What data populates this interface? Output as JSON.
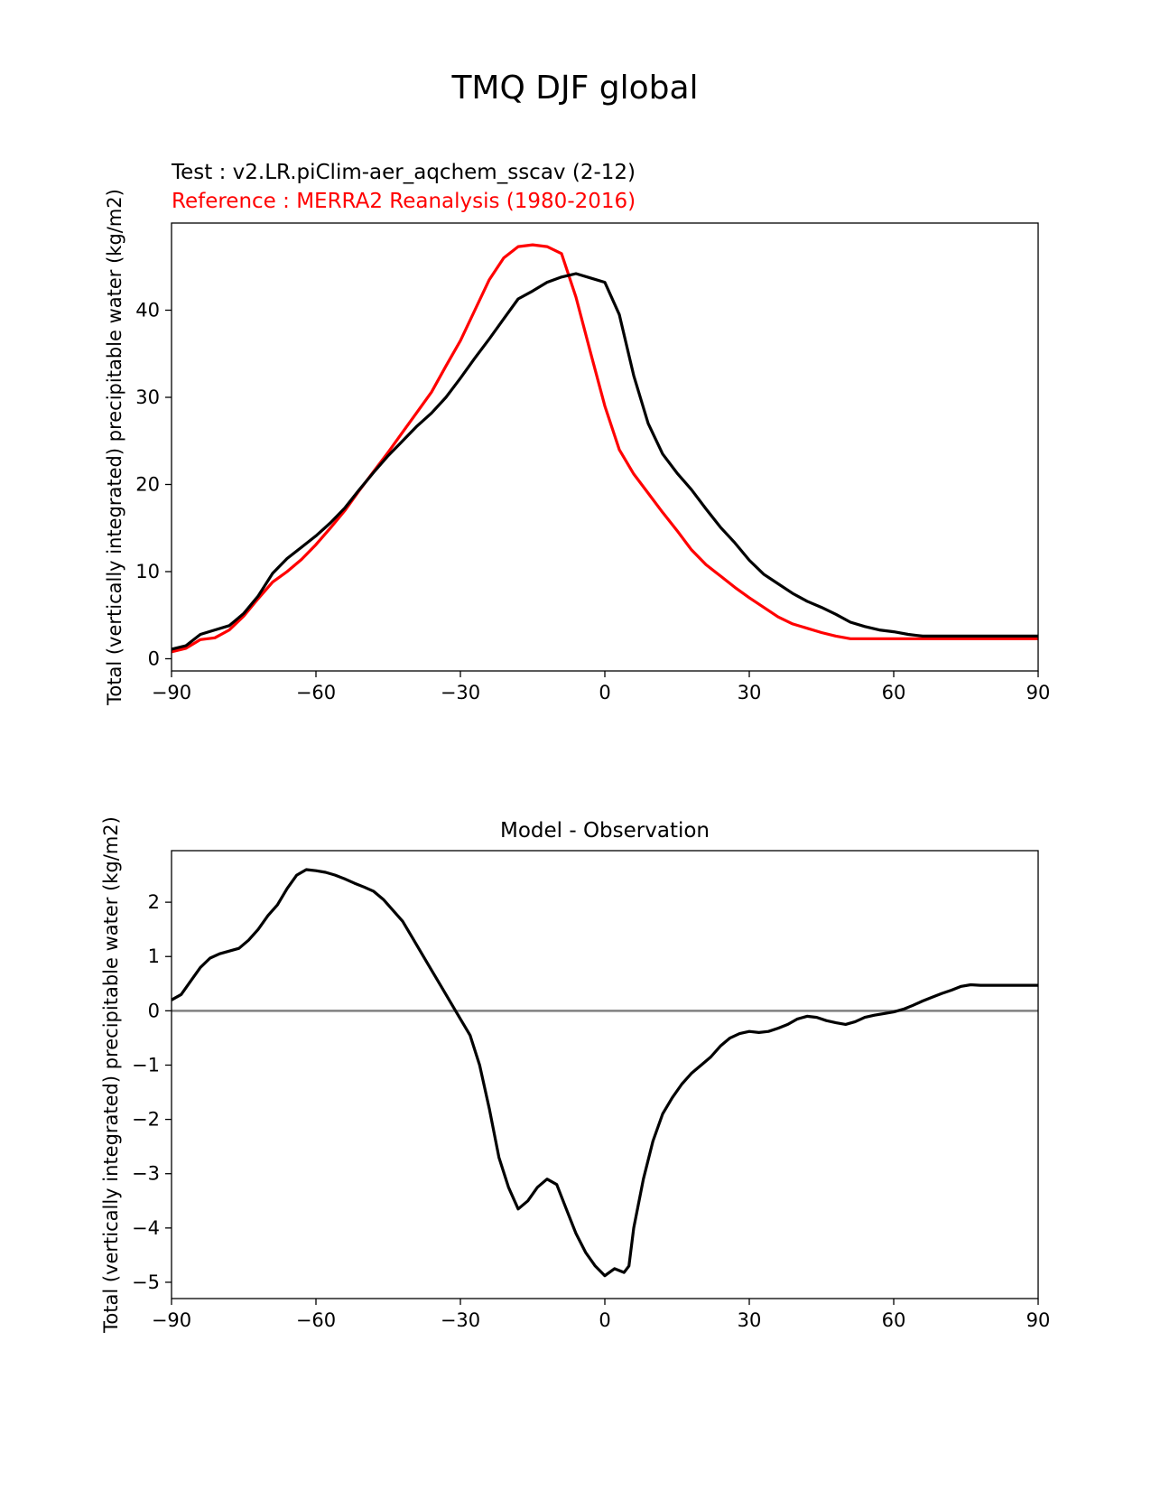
{
  "figure": {
    "suptitle": "TMQ DJF global"
  },
  "chart_data": [
    {
      "type": "line",
      "title_test": "Test : v2.LR.piClim-aer_aqchem_sscav (2-12)",
      "title_reference": "Reference : MERRA2 Reanalysis (1980-2016)",
      "xlabel": "",
      "ylabel": "Total (vertically integrated) precipitable water (kg/m2)",
      "xlim": [
        -90,
        90
      ],
      "ylim": [
        -1.4,
        50
      ],
      "xticks": [
        "−90",
        "−60",
        "−30",
        "0",
        "30",
        "60",
        "90"
      ],
      "yticks": [
        "0",
        "10",
        "20",
        "30",
        "40"
      ],
      "grid": false,
      "legend": "none",
      "series": [
        {
          "color": "#000000",
          "x": [
            -90,
            -87,
            -84,
            -81,
            -78,
            -75,
            -72,
            -69,
            -66,
            -63,
            -60,
            -57,
            -54,
            -51,
            -48,
            -45,
            -42,
            -39,
            -36,
            -33,
            -30,
            -27,
            -24,
            -21,
            -18,
            -15,
            -12,
            -9,
            -6,
            -3,
            0,
            3,
            6,
            9,
            12,
            15,
            18,
            21,
            24,
            27,
            30,
            33,
            36,
            39,
            42,
            45,
            48,
            51,
            54,
            57,
            60,
            63,
            66,
            69,
            72,
            75,
            78,
            81,
            84,
            87,
            90
          ],
          "values": [
            1.1,
            1.5,
            2.8,
            3.3,
            3.8,
            5.2,
            7.2,
            9.8,
            11.5,
            12.8,
            14.1,
            15.6,
            17.3,
            19.4,
            21.4,
            23.3,
            25.0,
            26.7,
            28.2,
            30.0,
            32.2,
            34.5,
            36.7,
            39.0,
            41.3,
            42.2,
            43.2,
            43.8,
            44.2,
            43.7,
            43.2,
            39.5,
            32.5,
            27.0,
            23.5,
            21.3,
            19.4,
            17.2,
            15.1,
            13.3,
            11.3,
            9.7,
            8.6,
            7.5,
            6.6,
            5.9,
            5.1,
            4.2,
            3.7,
            3.3,
            3.1,
            2.8,
            2.6,
            2.6,
            2.6,
            2.6,
            2.6,
            2.6,
            2.6,
            2.6,
            2.6
          ]
        },
        {
          "color": "#ff0000",
          "x": [
            -90,
            -87,
            -84,
            -81,
            -78,
            -75,
            -72,
            -69,
            -66,
            -63,
            -60,
            -57,
            -54,
            -51,
            -48,
            -45,
            -42,
            -39,
            -36,
            -33,
            -30,
            -27,
            -24,
            -21,
            -18,
            -15,
            -12,
            -9,
            -6,
            -3,
            0,
            3,
            6,
            9,
            12,
            15,
            18,
            21,
            24,
            27,
            30,
            33,
            36,
            39,
            42,
            45,
            48,
            51,
            54,
            57,
            60,
            63,
            66,
            69,
            72,
            75,
            78,
            81,
            84,
            87,
            90
          ],
          "values": [
            0.8,
            1.2,
            2.2,
            2.4,
            3.3,
            4.9,
            6.9,
            8.8,
            10.0,
            11.4,
            13.1,
            15.0,
            17.0,
            19.3,
            21.5,
            23.7,
            26.0,
            28.3,
            30.6,
            33.6,
            36.5,
            40.0,
            43.5,
            46.0,
            47.3,
            47.5,
            47.3,
            46.5,
            41.5,
            35.2,
            29.0,
            24.0,
            21.2,
            19.0,
            16.8,
            14.7,
            12.5,
            10.8,
            9.5,
            8.2,
            7.0,
            5.9,
            4.8,
            4.0,
            3.5,
            3.0,
            2.6,
            2.3,
            2.3,
            2.3,
            2.3,
            2.3,
            2.3,
            2.3,
            2.3,
            2.3,
            2.3,
            2.3,
            2.3,
            2.3,
            2.3
          ]
        }
      ]
    },
    {
      "type": "line",
      "title": "Model - Observation",
      "xlabel": "",
      "ylabel": "Total (vertically integrated) precipitable water (kg/m2)",
      "xlim": [
        -90,
        90
      ],
      "ylim": [
        -5.3,
        2.95
      ],
      "xticks": [
        "−90",
        "−60",
        "−30",
        "0",
        "30",
        "60",
        "90"
      ],
      "yticks": [
        "2",
        "1",
        "0",
        "−1",
        "−2",
        "−3",
        "−4",
        "−5"
      ],
      "grid": false,
      "legend": "none",
      "zero_line_color": "#808080",
      "series": [
        {
          "color": "#000000",
          "x": [
            -90,
            -88,
            -86,
            -84,
            -82,
            -80,
            -78,
            -76,
            -74,
            -72,
            -70,
            -68,
            -66,
            -64,
            -62,
            -60,
            -58,
            -56,
            -54,
            -52,
            -50,
            -48,
            -46,
            -44,
            -42,
            -40,
            -38,
            -36,
            -34,
            -32,
            -30,
            -28,
            -26,
            -24,
            -22,
            -20,
            -18,
            -16,
            -14,
            -12,
            -10,
            -8,
            -6,
            -4,
            -2,
            0,
            2,
            4,
            5,
            6,
            8,
            10,
            12,
            14,
            16,
            18,
            20,
            22,
            24,
            26,
            28,
            30,
            32,
            34,
            36,
            38,
            40,
            42,
            44,
            46,
            48,
            50,
            52,
            54,
            56,
            58,
            60,
            62,
            64,
            66,
            68,
            70,
            72,
            74,
            76,
            78,
            80,
            82,
            84,
            86,
            88,
            90
          ],
          "values": [
            0.2,
            0.3,
            0.55,
            0.8,
            0.97,
            1.05,
            1.1,
            1.15,
            1.3,
            1.5,
            1.75,
            1.95,
            2.25,
            2.5,
            2.6,
            2.58,
            2.55,
            2.5,
            2.43,
            2.35,
            2.28,
            2.2,
            2.05,
            1.85,
            1.65,
            1.35,
            1.05,
            0.75,
            0.45,
            0.15,
            -0.15,
            -0.45,
            -1.0,
            -1.8,
            -2.7,
            -3.25,
            -3.65,
            -3.5,
            -3.25,
            -3.1,
            -3.2,
            -3.65,
            -4.1,
            -4.45,
            -4.7,
            -4.88,
            -4.75,
            -4.82,
            -4.7,
            -4.0,
            -3.1,
            -2.4,
            -1.9,
            -1.6,
            -1.35,
            -1.15,
            -1.0,
            -0.85,
            -0.65,
            -0.5,
            -0.42,
            -0.38,
            -0.4,
            -0.38,
            -0.32,
            -0.25,
            -0.15,
            -0.1,
            -0.12,
            -0.18,
            -0.22,
            -0.25,
            -0.2,
            -0.12,
            -0.08,
            -0.05,
            -0.02,
            0.03,
            0.1,
            0.18,
            0.25,
            0.32,
            0.38,
            0.45,
            0.48,
            0.47,
            0.47,
            0.47,
            0.47,
            0.47,
            0.47,
            0.47
          ]
        }
      ]
    }
  ]
}
